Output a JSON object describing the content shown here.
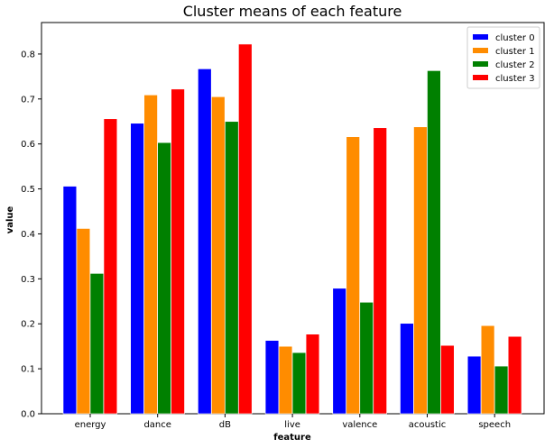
{
  "chart_data": {
    "type": "bar",
    "title": "Cluster means of each feature",
    "xlabel": "feature",
    "ylabel": "value",
    "categories": [
      "energy",
      "dance",
      "dB",
      "live",
      "valence",
      "acoustic",
      "speech"
    ],
    "ylim": [
      0,
      0.87
    ],
    "yticks": [
      "0.0",
      "0.1",
      "0.2",
      "0.3",
      "0.4",
      "0.5",
      "0.6",
      "0.7",
      "0.8"
    ],
    "grid": false,
    "legend_position": "top-right",
    "series": [
      {
        "name": "cluster 0",
        "color": "#0000ff",
        "values": [
          0.506,
          0.646,
          0.767,
          0.163,
          0.279,
          0.201,
          0.128
        ]
      },
      {
        "name": "cluster 1",
        "color": "#ff8c00",
        "values": [
          0.412,
          0.709,
          0.705,
          0.15,
          0.616,
          0.638,
          0.196
        ]
      },
      {
        "name": "cluster 2",
        "color": "#008000",
        "values": [
          0.312,
          0.603,
          0.65,
          0.136,
          0.248,
          0.763,
          0.106
        ]
      },
      {
        "name": "cluster 3",
        "color": "#ff0000",
        "values": [
          0.656,
          0.722,
          0.822,
          0.177,
          0.636,
          0.152,
          0.172
        ]
      }
    ]
  }
}
